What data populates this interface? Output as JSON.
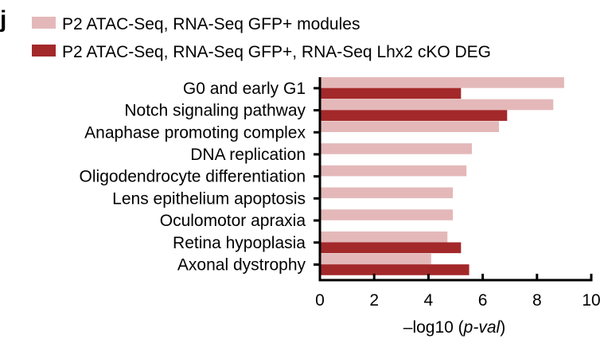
{
  "panel_letter": "j",
  "colors": {
    "modules": "#e4b8b9",
    "deg": "#a3282a",
    "axis": "#000000"
  },
  "chart_data": {
    "type": "bar",
    "orientation": "horizontal",
    "categories": [
      "G0 and early G1",
      "Notch signaling pathway",
      "Anaphase promoting complex",
      "DNA replication",
      "Oligodendrocyte differentiation",
      "Lens epithelium apoptosis",
      "Oculomotor apraxia",
      "Retina hypoplasia",
      "Axonal dystrophy"
    ],
    "series": [
      {
        "name": "P2 ATAC-Seq, RNA-Seq GFP+ modules",
        "values": [
          9.0,
          8.6,
          6.6,
          5.6,
          5.4,
          4.9,
          4.9,
          4.7,
          4.1
        ]
      },
      {
        "name": "P2 ATAC-Seq, RNA-Seq GFP+, RNA-Seq Lhx2 cKO DEG",
        "values": [
          5.2,
          6.9,
          null,
          null,
          null,
          null,
          null,
          5.2,
          5.5
        ]
      }
    ],
    "xlim": [
      0,
      10
    ],
    "xticks": [
      "0",
      "2",
      "4",
      "6",
      "8",
      "10"
    ],
    "xlabel_prefix": "–log10 (",
    "xlabel_italic": "p-val",
    "xlabel_suffix": ")",
    "legend_position": "top-left"
  }
}
